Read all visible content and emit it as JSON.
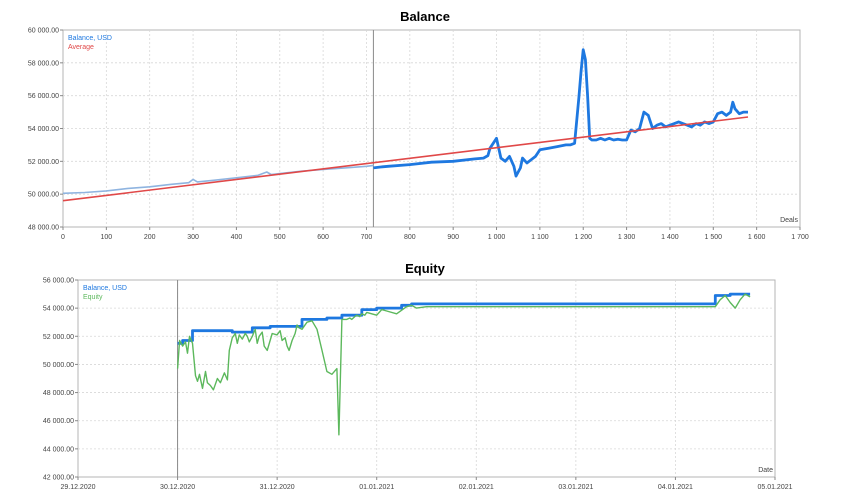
{
  "chart_data": [
    {
      "type": "line",
      "title": "Balance",
      "xlabel": "Deals",
      "xlim": [
        0,
        1700
      ],
      "ylim": [
        48000,
        60000
      ],
      "x_ticks": [
        0,
        100,
        200,
        300,
        400,
        500,
        600,
        700,
        800,
        900,
        1000,
        1100,
        1200,
        1300,
        1400,
        1500,
        1600,
        1700
      ],
      "x_tick_labels": [
        "0",
        "100",
        "200",
        "300",
        "400",
        "500",
        "600",
        "700",
        "800",
        "900",
        "1 000",
        "1 100",
        "1 200",
        "1 300",
        "1 400",
        "1 500",
        "1 600",
        "1 700"
      ],
      "y_ticks": [
        48000,
        50000,
        52000,
        54000,
        56000,
        58000,
        60000
      ],
      "y_tick_labels": [
        "48 000.00",
        "50 000.00",
        "52 000.00",
        "54 000.00",
        "56 000.00",
        "58 000.00",
        "60 000.00"
      ],
      "marker_x": 716,
      "grid": true,
      "legend": "top-left",
      "series": [
        {
          "name": "Balance, USD",
          "color": "#1e78e0",
          "x": [
            0,
            50,
            100,
            150,
            200,
            250,
            290,
            300,
            310,
            350,
            400,
            450,
            470,
            480,
            500,
            550,
            600,
            650,
            700,
            716
          ],
          "y": [
            50050,
            50100,
            50200,
            50350,
            50450,
            50600,
            50700,
            50900,
            50750,
            50850,
            51000,
            51150,
            51350,
            51200,
            51250,
            51400,
            51500,
            51600,
            51700,
            51750
          ]
        },
        {
          "name": "",
          "color": "#1e78e0",
          "x": [
            716,
            730,
            750,
            800,
            850,
            900,
            950,
            970,
            980,
            985,
            1000,
            1010,
            1020,
            1030,
            1040,
            1045,
            1055,
            1060,
            1070,
            1080,
            1090,
            1100,
            1110,
            1120,
            1140,
            1160,
            1170,
            1180,
            1190,
            1195,
            1200,
            1205,
            1210,
            1215,
            1220,
            1230,
            1240,
            1250,
            1260,
            1270,
            1280,
            1290,
            1300,
            1310,
            1320,
            1330,
            1340,
            1350,
            1360,
            1370,
            1380,
            1390,
            1400,
            1410,
            1420,
            1430,
            1440,
            1450,
            1460,
            1470,
            1480,
            1490,
            1500,
            1510,
            1520,
            1530,
            1540,
            1545,
            1550,
            1560,
            1570,
            1580
          ],
          "y": [
            51600,
            51650,
            51700,
            51800,
            51950,
            52000,
            52150,
            52200,
            52350,
            52800,
            53400,
            52200,
            52000,
            52300,
            51700,
            51100,
            51600,
            52200,
            51900,
            52100,
            52300,
            52700,
            52750,
            52800,
            52900,
            53000,
            53000,
            53100,
            55900,
            57500,
            58800,
            58200,
            56000,
            53400,
            53300,
            53300,
            53400,
            53300,
            53400,
            53300,
            53350,
            53300,
            53300,
            53900,
            53800,
            54000,
            55000,
            54800,
            54000,
            54200,
            54300,
            54100,
            54200,
            54300,
            54400,
            54300,
            54200,
            54100,
            54300,
            54200,
            54400,
            54300,
            54400,
            54900,
            55000,
            54800,
            55000,
            55600,
            55200,
            54900,
            55000,
            55000
          ]
        },
        {
          "name": "Average",
          "color": "#e04848",
          "x": [
            0,
            1580
          ],
          "y": [
            49600,
            54700
          ]
        }
      ]
    },
    {
      "type": "line",
      "title": "Equity",
      "xlabel": "Date",
      "xlim": [
        0,
        7
      ],
      "ylim": [
        42000,
        56000
      ],
      "x_ticks": [
        0,
        1,
        2,
        3,
        4,
        5,
        6,
        7
      ],
      "x_tick_labels": [
        "29.12.2020",
        "30.12.2020",
        "31.12.2020",
        "01.01.2021",
        "02.01.2021",
        "03.01.2021",
        "04.01.2021",
        "05.01.2021"
      ],
      "y_ticks": [
        42000,
        44000,
        46000,
        48000,
        50000,
        52000,
        54000,
        56000
      ],
      "y_tick_labels": [
        "42 000.00",
        "44 000.00",
        "46 000.00",
        "48 000.00",
        "50 000.00",
        "52 000.00",
        "54 000.00",
        "56 000.00"
      ],
      "marker_x": 1.0,
      "grid": true,
      "legend": "top-left",
      "series": [
        {
          "name": "Balance, USD",
          "color": "#1e78e0",
          "x": [
            1.0,
            1.05,
            1.05,
            1.15,
            1.15,
            1.55,
            1.55,
            1.75,
            1.75,
            1.93,
            1.93,
            2.25,
            2.25,
            2.5,
            2.5,
            2.65,
            2.65,
            2.85,
            2.85,
            3.0,
            3.0,
            3.25,
            3.25,
            3.35,
            3.35,
            6.4,
            6.4,
            6.55,
            6.55,
            6.75
          ],
          "y": [
            51500,
            51500,
            51700,
            51700,
            52400,
            52400,
            52300,
            52300,
            52600,
            52600,
            52700,
            52700,
            53200,
            53200,
            53300,
            53300,
            53500,
            53500,
            53900,
            53900,
            54000,
            54000,
            54200,
            54200,
            54300,
            54300,
            54900,
            54900,
            55000,
            55000
          ]
        },
        {
          "name": "Equity",
          "color": "#5cb85c",
          "x": [
            1.0,
            1.02,
            1.05,
            1.08,
            1.1,
            1.12,
            1.15,
            1.18,
            1.2,
            1.22,
            1.25,
            1.28,
            1.3,
            1.33,
            1.36,
            1.4,
            1.43,
            1.47,
            1.5,
            1.52,
            1.55,
            1.58,
            1.6,
            1.62,
            1.65,
            1.68,
            1.7,
            1.72,
            1.75,
            1.78,
            1.8,
            1.82,
            1.85,
            1.87,
            1.9,
            1.95,
            2.0,
            2.03,
            2.05,
            2.08,
            2.1,
            2.12,
            2.15,
            2.18,
            2.2,
            2.22,
            2.25,
            2.3,
            2.35,
            2.4,
            2.45,
            2.5,
            2.55,
            2.6,
            2.62,
            2.65,
            2.7,
            2.73,
            2.75,
            2.78,
            2.8,
            2.83,
            2.85,
            2.88,
            2.9,
            2.95,
            3.0,
            3.05,
            3.1,
            3.2,
            3.3,
            3.35,
            3.4,
            3.5,
            4.0,
            5.0,
            6.0,
            6.4,
            6.45,
            6.5,
            6.55,
            6.6,
            6.65,
            6.7,
            6.75
          ],
          "y": [
            49700,
            51700,
            51300,
            51600,
            50800,
            52000,
            51500,
            49200,
            48800,
            49300,
            48300,
            49500,
            48700,
            48500,
            48200,
            49000,
            48700,
            49400,
            48900,
            51000,
            51900,
            52200,
            51500,
            52100,
            51800,
            52200,
            52000,
            51600,
            52000,
            52500,
            51500,
            52000,
            52300,
            51300,
            51000,
            52200,
            52100,
            52400,
            51700,
            51900,
            51300,
            51000,
            51700,
            52200,
            52800,
            52600,
            52500,
            53000,
            53100,
            52500,
            51000,
            49500,
            49300,
            49700,
            45000,
            53200,
            53200,
            53300,
            53200,
            53400,
            53500,
            53400,
            53600,
            53500,
            53700,
            53600,
            53500,
            53900,
            53800,
            53600,
            54100,
            54200,
            54000,
            54100,
            54100,
            54100,
            54100,
            54100,
            54600,
            54900,
            54400,
            54000,
            54600,
            55000,
            54800
          ]
        }
      ]
    }
  ]
}
